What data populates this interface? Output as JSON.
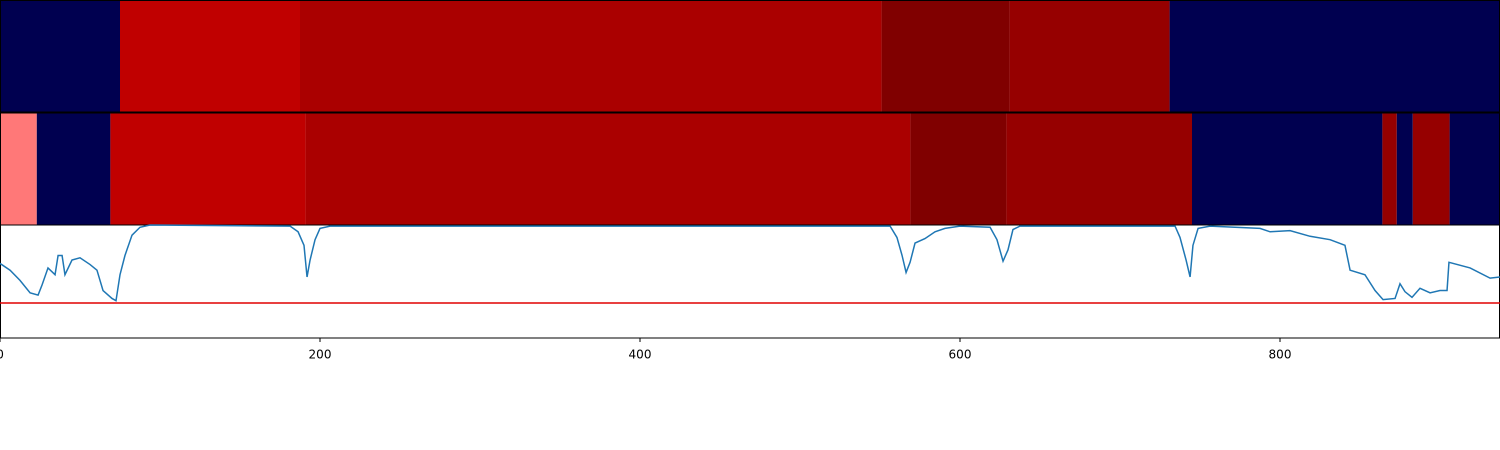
{
  "chart_data": {
    "type": "segmentation",
    "xlim": [
      0,
      937.5
    ],
    "xticks": [
      0,
      200,
      400,
      600,
      800
    ],
    "rows": [
      {
        "segments": [
          {
            "start": 0,
            "end": 75,
            "color": "#000050"
          },
          {
            "start": 75,
            "end": 187.5,
            "color": "#c00000"
          },
          {
            "start": 187.5,
            "end": 551,
            "color": "#aa0000"
          },
          {
            "start": 551,
            "end": 631,
            "color": "#800000"
          },
          {
            "start": 631,
            "end": 731,
            "color": "#960000"
          },
          {
            "start": 731,
            "end": 937.5,
            "color": "#000050"
          }
        ]
      },
      {
        "segments": [
          {
            "start": 0,
            "end": 23,
            "color": "#ff7878"
          },
          {
            "start": 23,
            "end": 69,
            "color": "#000050"
          },
          {
            "start": 69,
            "end": 191,
            "color": "#c00000"
          },
          {
            "start": 191,
            "end": 569,
            "color": "#aa0000"
          },
          {
            "start": 569,
            "end": 629,
            "color": "#800000"
          },
          {
            "start": 629,
            "end": 745,
            "color": "#960000"
          },
          {
            "start": 745,
            "end": 864,
            "color": "#000050"
          },
          {
            "start": 864,
            "end": 873,
            "color": "#960000"
          },
          {
            "start": 873,
            "end": 883,
            "color": "#000050"
          },
          {
            "start": 883,
            "end": 906,
            "color": "#960000"
          },
          {
            "start": 906,
            "end": 937.5,
            "color": "#000050"
          }
        ]
      }
    ],
    "line": {
      "color": "#1f77b4",
      "ylim": [
        0,
        1
      ],
      "x": [
        0,
        6.3,
        12.5,
        18.8,
        23.8,
        26.3,
        30,
        34.4,
        36.3,
        38.8,
        40.6,
        45,
        50,
        56.3,
        60.6,
        64.4,
        70,
        72.5,
        75,
        78.1,
        82.5,
        87.5,
        93.8,
        181.3,
        186.3,
        190,
        191.9,
        193.8,
        196.9,
        200,
        206.3,
        556.3,
        560.6,
        563.8,
        566.3,
        568.8,
        571.9,
        578.1,
        584.4,
        590.6,
        600,
        618.8,
        623.1,
        626.9,
        630,
        633.1,
        637.5,
        734.4,
        737.5,
        741.3,
        743.8,
        745.6,
        748.8,
        756.3,
        787.5,
        793.8,
        806.3,
        818.8,
        831.3,
        840.6,
        843.8,
        853.1,
        859.4,
        864.4,
        871.9,
        875,
        878.1,
        882.5,
        887.5,
        893.8,
        900,
        904.4,
        905.6,
        918.8,
        931.3,
        937.5
      ],
      "values": [
        0.66,
        0.6,
        0.51,
        0.4,
        0.38,
        0.47,
        0.62,
        0.56,
        0.73,
        0.73,
        0.56,
        0.69,
        0.71,
        0.65,
        0.6,
        0.42,
        0.35,
        0.33,
        0.56,
        0.73,
        0.91,
        0.98,
        1.0,
        0.99,
        0.94,
        0.82,
        0.54,
        0.69,
        0.87,
        0.97,
        0.99,
        0.99,
        0.89,
        0.73,
        0.58,
        0.67,
        0.84,
        0.88,
        0.94,
        0.97,
        0.99,
        0.98,
        0.87,
        0.68,
        0.78,
        0.96,
        0.99,
        0.99,
        0.89,
        0.69,
        0.54,
        0.82,
        0.97,
        0.99,
        0.97,
        0.94,
        0.95,
        0.9,
        0.87,
        0.82,
        0.6,
        0.56,
        0.42,
        0.34,
        0.35,
        0.48,
        0.41,
        0.36,
        0.44,
        0.4,
        0.42,
        0.42,
        0.67,
        0.62,
        0.53,
        0.54
      ],
      "threshold": {
        "value": 0.31,
        "color": "#e00000"
      }
    }
  }
}
